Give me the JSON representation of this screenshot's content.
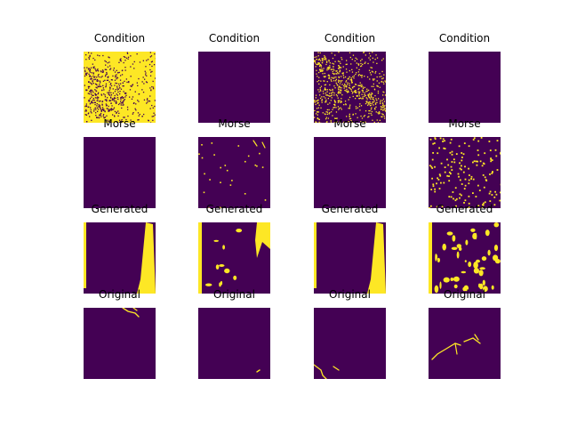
{
  "chart_data": {
    "type": "heatmap",
    "title": "",
    "colormap": {
      "low": "#440154",
      "high": "#fde725"
    },
    "grid": {
      "rows": 4,
      "cols": 4
    },
    "row_titles": [
      "Condition",
      "Morse",
      "Generated",
      "Original"
    ],
    "panels": [
      [
        {
          "title": "Condition",
          "pattern": "dense-noise"
        },
        {
          "title": "Condition",
          "pattern": "empty"
        },
        {
          "title": "Condition",
          "pattern": "noise-streaks"
        },
        {
          "title": "Condition",
          "pattern": "empty"
        }
      ],
      [
        {
          "title": "Morse",
          "pattern": "empty"
        },
        {
          "title": "Morse",
          "pattern": "sparse-dots"
        },
        {
          "title": "Morse",
          "pattern": "empty"
        },
        {
          "title": "Morse",
          "pattern": "dotted-network"
        }
      ],
      [
        {
          "title": "Generated",
          "pattern": "left-wedge"
        },
        {
          "title": "Generated",
          "pattern": "scattered-blobs"
        },
        {
          "title": "Generated",
          "pattern": "left-wedge"
        },
        {
          "title": "Generated",
          "pattern": "dense-blobs"
        }
      ],
      [
        {
          "title": "Original",
          "pattern": "top-crack"
        },
        {
          "title": "Original",
          "pattern": "tiny-mark"
        },
        {
          "title": "Original",
          "pattern": "corner-crack"
        },
        {
          "title": "Original",
          "pattern": "network-crack"
        }
      ]
    ]
  }
}
